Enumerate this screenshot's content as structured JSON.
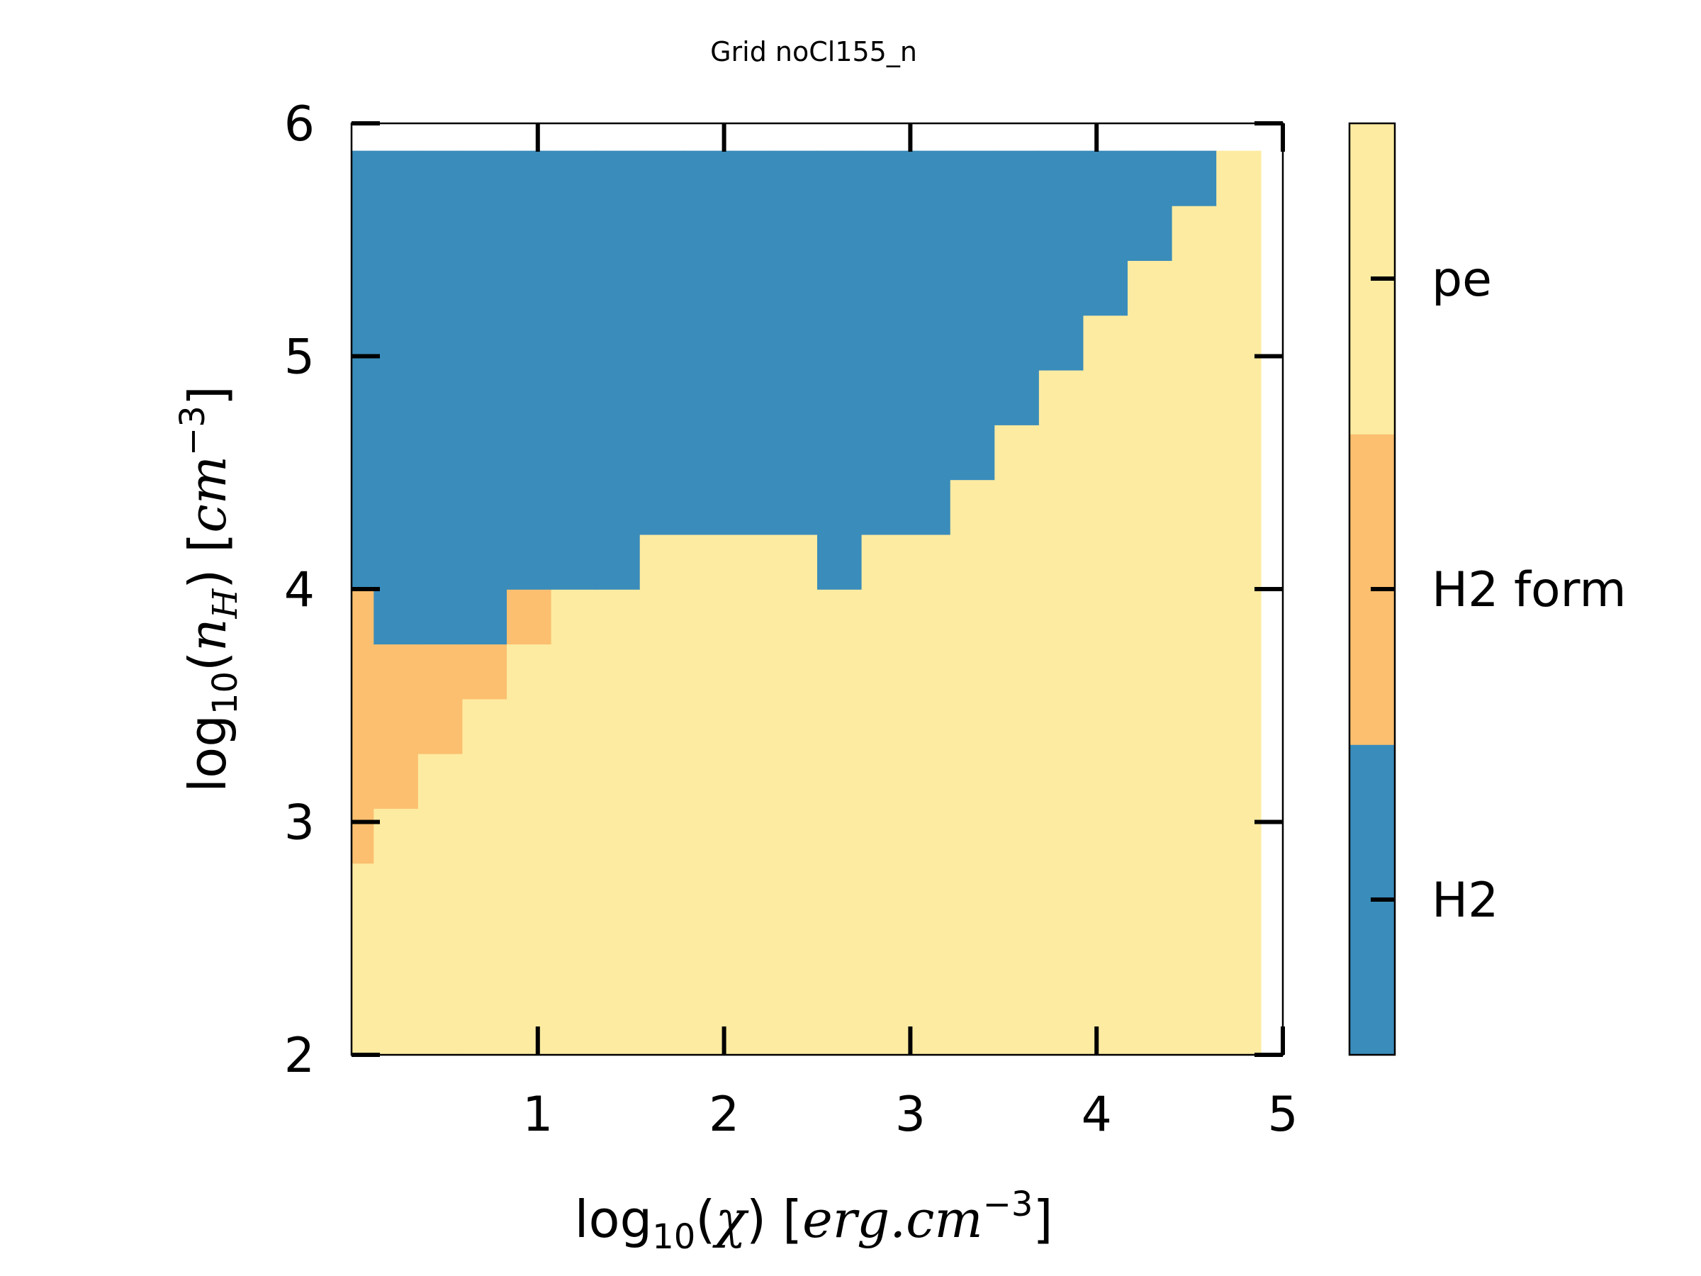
{
  "chart_data": {
    "type": "heatmap",
    "title": "Grid noCl155_n",
    "xlabel": {
      "pre": "log",
      "sub": "10",
      "mid": "(",
      "sym": "χ",
      "post": ") [",
      "unit": "erg.cm",
      "sup": "−3",
      "close": "]"
    },
    "ylabel": {
      "pre": "log",
      "sub": "10",
      "mid": "(",
      "sym": "n",
      "symsub": "H",
      "post": ") [",
      "unit": "cm",
      "sup": "−3",
      "close": "]"
    },
    "xlim": [
      0,
      5
    ],
    "ylim": [
      2,
      6
    ],
    "x_ticks": [
      "1",
      "2",
      "3",
      "4",
      "5"
    ],
    "y_ticks": [
      "2",
      "3",
      "4",
      "5",
      "6"
    ],
    "x_tick_values": [
      1,
      2,
      3,
      4,
      5
    ],
    "y_tick_values": [
      2,
      3,
      4,
      5,
      6
    ],
    "grid": false,
    "categories": [
      {
        "code": 0,
        "name": "H2",
        "color": "#3a8cba"
      },
      {
        "code": 1,
        "name": "H2 form",
        "color": "#fbbf6f"
      },
      {
        "code": 2,
        "name": "pe",
        "color": "#fdeba1"
      }
    ],
    "x_cells": 21,
    "y_cells": 17,
    "x_cell_width": 0.2381,
    "y_cell_height": 0.2353,
    "first_cell_center": [
      0.0,
      2.0
    ],
    "grid_codes_bottom_to_top": [
      [
        2,
        2,
        2,
        2,
        2,
        2,
        2,
        2,
        2,
        2,
        2,
        2,
        2,
        2,
        2,
        2,
        2,
        2,
        2,
        2,
        2
      ],
      [
        2,
        2,
        2,
        2,
        2,
        2,
        2,
        2,
        2,
        2,
        2,
        2,
        2,
        2,
        2,
        2,
        2,
        2,
        2,
        2,
        2
      ],
      [
        2,
        2,
        2,
        2,
        2,
        2,
        2,
        2,
        2,
        2,
        2,
        2,
        2,
        2,
        2,
        2,
        2,
        2,
        2,
        2,
        2
      ],
      [
        2,
        2,
        2,
        2,
        2,
        2,
        2,
        2,
        2,
        2,
        2,
        2,
        2,
        2,
        2,
        2,
        2,
        2,
        2,
        2,
        2
      ],
      [
        1,
        2,
        2,
        2,
        2,
        2,
        2,
        2,
        2,
        2,
        2,
        2,
        2,
        2,
        2,
        2,
        2,
        2,
        2,
        2,
        2
      ],
      [
        1,
        1,
        2,
        2,
        2,
        2,
        2,
        2,
        2,
        2,
        2,
        2,
        2,
        2,
        2,
        2,
        2,
        2,
        2,
        2,
        2
      ],
      [
        1,
        1,
        1,
        2,
        2,
        2,
        2,
        2,
        2,
        2,
        2,
        2,
        2,
        2,
        2,
        2,
        2,
        2,
        2,
        2,
        2
      ],
      [
        1,
        1,
        1,
        1,
        2,
        2,
        2,
        2,
        2,
        2,
        2,
        2,
        2,
        2,
        2,
        2,
        2,
        2,
        2,
        2,
        2
      ],
      [
        1,
        0,
        0,
        0,
        1,
        2,
        2,
        2,
        2,
        2,
        2,
        2,
        2,
        2,
        2,
        2,
        2,
        2,
        2,
        2,
        2
      ],
      [
        0,
        0,
        0,
        0,
        0,
        0,
        0,
        2,
        2,
        2,
        2,
        0,
        2,
        2,
        2,
        2,
        2,
        2,
        2,
        2,
        2
      ],
      [
        0,
        0,
        0,
        0,
        0,
        0,
        0,
        0,
        0,
        0,
        0,
        0,
        0,
        0,
        2,
        2,
        2,
        2,
        2,
        2,
        2
      ],
      [
        0,
        0,
        0,
        0,
        0,
        0,
        0,
        0,
        0,
        0,
        0,
        0,
        0,
        0,
        0,
        2,
        2,
        2,
        2,
        2,
        2
      ],
      [
        0,
        0,
        0,
        0,
        0,
        0,
        0,
        0,
        0,
        0,
        0,
        0,
        0,
        0,
        0,
        0,
        2,
        2,
        2,
        2,
        2
      ],
      [
        0,
        0,
        0,
        0,
        0,
        0,
        0,
        0,
        0,
        0,
        0,
        0,
        0,
        0,
        0,
        0,
        0,
        2,
        2,
        2,
        2
      ],
      [
        0,
        0,
        0,
        0,
        0,
        0,
        0,
        0,
        0,
        0,
        0,
        0,
        0,
        0,
        0,
        0,
        0,
        0,
        2,
        2,
        2
      ],
      [
        0,
        0,
        0,
        0,
        0,
        0,
        0,
        0,
        0,
        0,
        0,
        0,
        0,
        0,
        0,
        0,
        0,
        0,
        0,
        2,
        2
      ],
      [
        0,
        0,
        0,
        0,
        0,
        0,
        0,
        0,
        0,
        0,
        0,
        0,
        0,
        0,
        0,
        0,
        0,
        0,
        0,
        0,
        2
      ]
    ],
    "colorbar": {
      "labels": [
        "H2",
        "H2 form",
        "pe"
      ],
      "colors": [
        "#3a8cba",
        "#fbbf6f",
        "#fdeba1"
      ]
    }
  }
}
